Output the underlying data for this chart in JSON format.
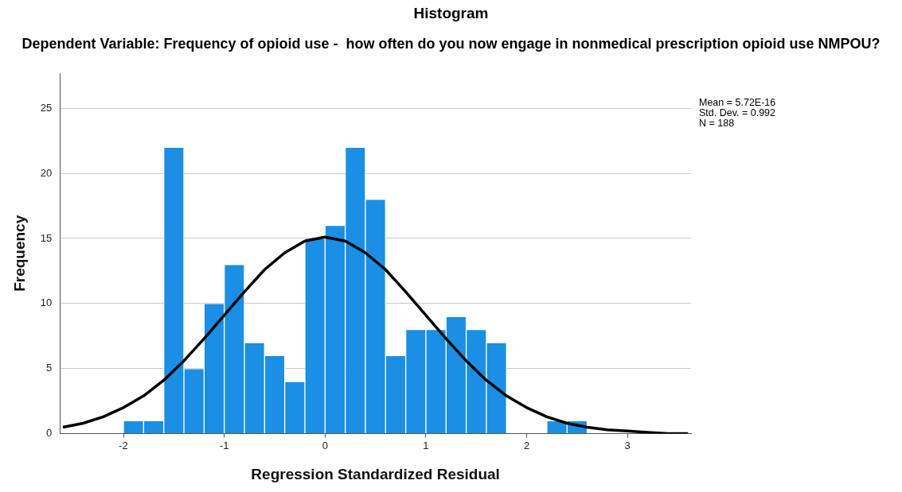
{
  "chart_data": {
    "type": "histogram",
    "title": "Histogram",
    "subtitle": "Dependent Variable: Frequency of opioid use -  how often do you now engage in nonmedical prescription opioid use NMPOU?",
    "xlabel": "Regression Standardized Residual",
    "ylabel": "Frequency",
    "bins": [
      -2.0,
      -1.8,
      -1.6,
      -1.4,
      -1.2,
      -1.0,
      -0.8,
      -0.6,
      -0.4,
      -0.2,
      0,
      0.2,
      0.4,
      0.6,
      0.8,
      1.0,
      1.2,
      1.4,
      1.6,
      1.8,
      2.0,
      2.2,
      2.4,
      2.6
    ],
    "values": [
      1,
      1,
      22,
      5,
      10,
      13,
      7,
      6,
      4,
      15,
      16,
      22,
      18,
      6,
      8,
      8,
      9,
      8,
      7,
      0,
      0,
      1,
      1
    ],
    "color": "#1a8fe3",
    "series": [
      {
        "type": "line",
        "color": "#000000",
        "x": [
          -2.6,
          -2.4,
          -2.2,
          -2.0,
          -1.8,
          -1.6,
          -1.4,
          -1.2,
          -1.0,
          -0.8,
          -0.6,
          -0.4,
          -0.2,
          0,
          0.2,
          0.4,
          0.6,
          0.8,
          1.0,
          1.2,
          1.4,
          1.6,
          1.8,
          2.0,
          2.2,
          2.4,
          2.6,
          2.8,
          3.0,
          3.2,
          3.4,
          3.6
        ],
        "values": [
          0.5,
          0.8,
          1.3,
          2.0,
          2.9,
          4.1,
          5.6,
          7.3,
          9.1,
          10.9,
          12.6,
          13.9,
          14.8,
          15.1,
          14.8,
          13.9,
          12.6,
          10.9,
          9.1,
          7.3,
          5.6,
          4.1,
          2.9,
          2.0,
          1.3,
          0.8,
          0.5,
          0.3,
          0.2,
          0.1,
          0.0,
          0.0
        ]
      }
    ],
    "xlim": [
      -2.63,
      3.63
    ],
    "ylim": [
      0,
      27.7
    ],
    "xticks": [
      -2,
      -1,
      0,
      1,
      2,
      3
    ],
    "yticks": [
      0,
      5,
      10,
      15,
      20,
      25
    ],
    "grid": "y",
    "legend": false,
    "annotations": [
      "Mean = 5.72E-16",
      "Std. Dev. = 0.992",
      "N = 188"
    ]
  }
}
